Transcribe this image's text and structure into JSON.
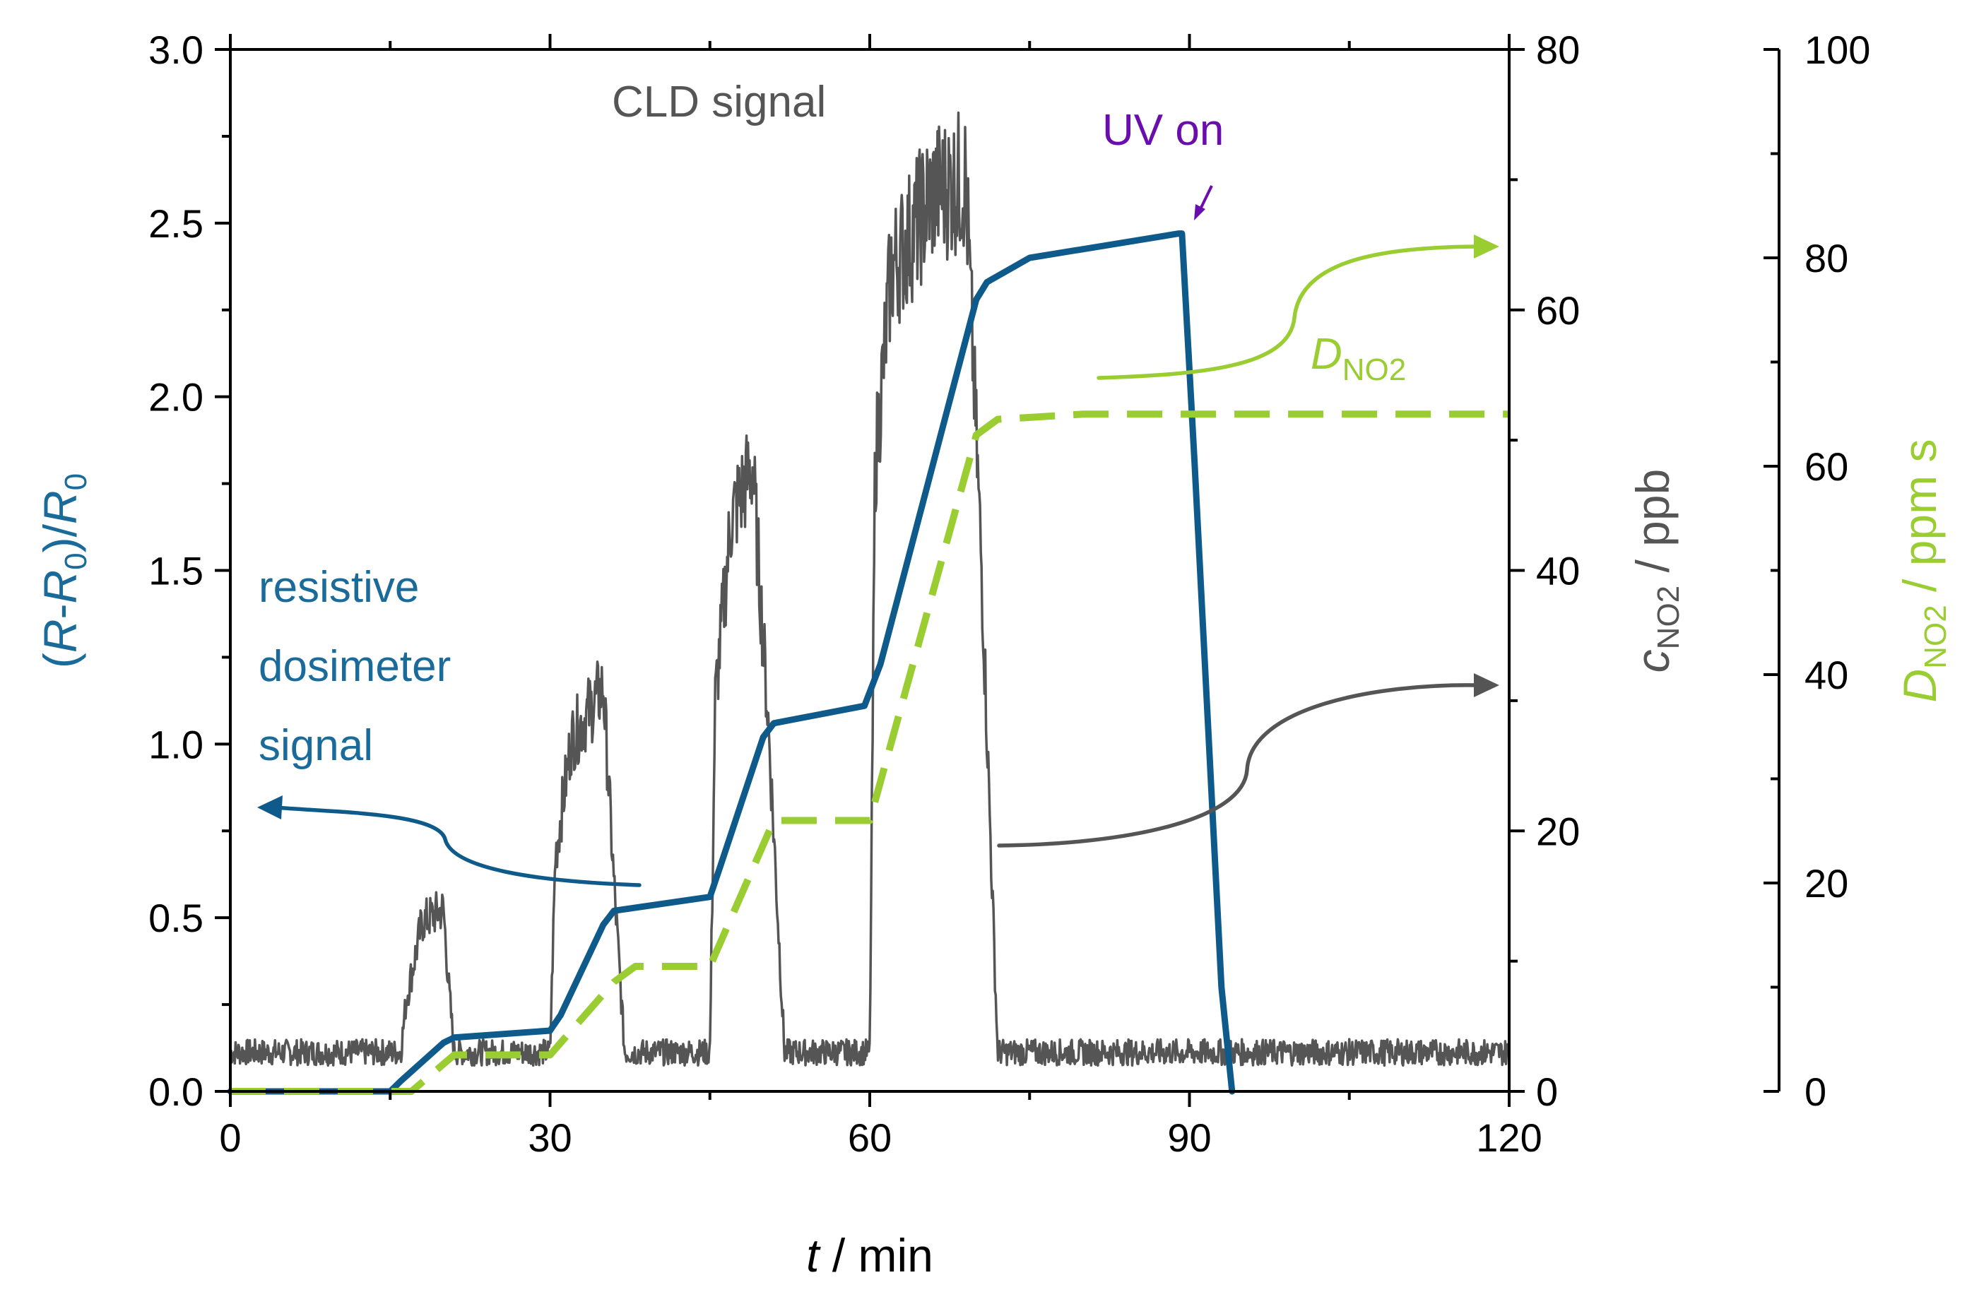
{
  "chart_data": {
    "type": "line",
    "x_axis": {
      "label_italic": "t",
      "label_rest": " / min",
      "range": [
        0,
        120
      ],
      "ticks": [
        0,
        30,
        60,
        90,
        120
      ]
    },
    "y_axis_left": {
      "label_parts": [
        "(R-R",
        "0",
        ")/R",
        "0"
      ],
      "range": [
        0,
        3
      ],
      "ticks": [
        "0.0",
        "0.5",
        "1.0",
        "1.5",
        "2.0",
        "2.5",
        "3.0"
      ],
      "color": "#1a6a9a"
    },
    "y_axis_right1": {
      "label_italic": "c",
      "label_sub": "NO2",
      "label_rest": " / ppb",
      "range": [
        0,
        80
      ],
      "ticks": [
        "0",
        "20",
        "40",
        "60",
        "80"
      ],
      "color": "#555555"
    },
    "y_axis_right2": {
      "label_italic": "D",
      "label_sub": "NO2",
      "label_rest": " / ppm s",
      "range": [
        0,
        100
      ],
      "ticks": [
        "0",
        "20",
        "40",
        "60",
        "80",
        "100"
      ],
      "color": "#9acd32"
    },
    "series": [
      {
        "name": "CLD signal",
        "axis": "right1",
        "color": "#555555",
        "x": [
          0,
          16,
          16.5,
          18,
          20,
          20.5,
          21,
          30,
          30.5,
          32,
          35,
          36,
          37,
          45,
          45.5,
          47,
          49,
          50.5,
          52,
          60,
          60.5,
          62,
          66,
          69,
          70.5,
          72,
          120
        ],
        "values": [
          3,
          3,
          7,
          13,
          14,
          8,
          3,
          3,
          18,
          27,
          31,
          16,
          3,
          3,
          30,
          44,
          48,
          28,
          3,
          3,
          48,
          63,
          69,
          70,
          40,
          3,
          3
        ]
      },
      {
        "name": "resistive dosimeter signal",
        "axis": "left",
        "color": "#0e5a8a",
        "x": [
          0,
          15,
          16,
          20,
          21,
          30,
          31,
          35,
          36,
          45,
          46,
          50,
          51,
          59.5,
          61,
          70,
          71,
          75,
          89,
          89.3,
          90.5,
          93,
          94
        ],
        "values": [
          0,
          0,
          0.03,
          0.14,
          0.155,
          0.175,
          0.22,
          0.48,
          0.52,
          0.56,
          0.65,
          1.02,
          1.06,
          1.11,
          1.23,
          2.28,
          2.33,
          2.4,
          2.47,
          2.47,
          1.8,
          0.3,
          0
        ]
      },
      {
        "name": "DNO2",
        "axis": "right2",
        "color": "#9acd32",
        "x": [
          0,
          17,
          21,
          30,
          36,
          38,
          45,
          51,
          60,
          70,
          72,
          80,
          90,
          120
        ],
        "values": [
          0,
          0,
          3.5,
          3.5,
          10.5,
          12,
          12,
          26,
          26,
          63,
          64.5,
          65,
          65,
          65
        ]
      }
    ],
    "annotations": {
      "cld_label": "CLD signal",
      "uv_label": "UV on",
      "resistive_label_lines": [
        "resistive",
        "dosimeter",
        "signal"
      ],
      "dno2_label_main": "D",
      "dno2_label_sub": "NO2"
    }
  }
}
